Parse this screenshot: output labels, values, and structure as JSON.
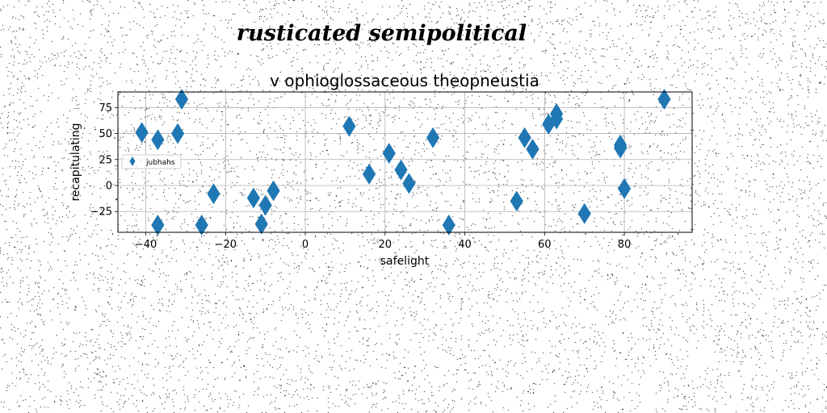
{
  "suptitle": "rusticated semipolitical",
  "chart_data": {
    "type": "scatter",
    "title": "v ophioglossaceous theopneustia",
    "xlabel": "safelight",
    "ylabel": "recapitulating",
    "xlim": [
      -47,
      97
    ],
    "ylim": [
      -45,
      90
    ],
    "xticks": [
      -40,
      -20,
      0,
      20,
      40,
      60,
      80
    ],
    "yticks": [
      -25,
      0,
      25,
      50,
      75
    ],
    "grid": true,
    "legend_position": "center-left",
    "marker": "thin_diamond",
    "color": "#1f77b4",
    "series": [
      {
        "name": "jubhahs",
        "points": [
          [
            -41,
            51
          ],
          [
            -37,
            44
          ],
          [
            -37,
            -38
          ],
          [
            -32,
            50
          ],
          [
            -31,
            83
          ],
          [
            -26,
            -38
          ],
          [
            -23,
            -8
          ],
          [
            -13,
            -12
          ],
          [
            -11,
            -37
          ],
          [
            -10,
            -19
          ],
          [
            -8,
            -5
          ],
          [
            11,
            57
          ],
          [
            16,
            11
          ],
          [
            21,
            31
          ],
          [
            24,
            15
          ],
          [
            26,
            2
          ],
          [
            32,
            46
          ],
          [
            36,
            -38
          ],
          [
            53,
            -15
          ],
          [
            55,
            46
          ],
          [
            57,
            35
          ],
          [
            61,
            59
          ],
          [
            63,
            64
          ],
          [
            63,
            69
          ],
          [
            70,
            -27
          ],
          [
            79,
            39
          ],
          [
            79,
            36
          ],
          [
            80,
            -3
          ],
          [
            90,
            83
          ]
        ]
      }
    ]
  }
}
